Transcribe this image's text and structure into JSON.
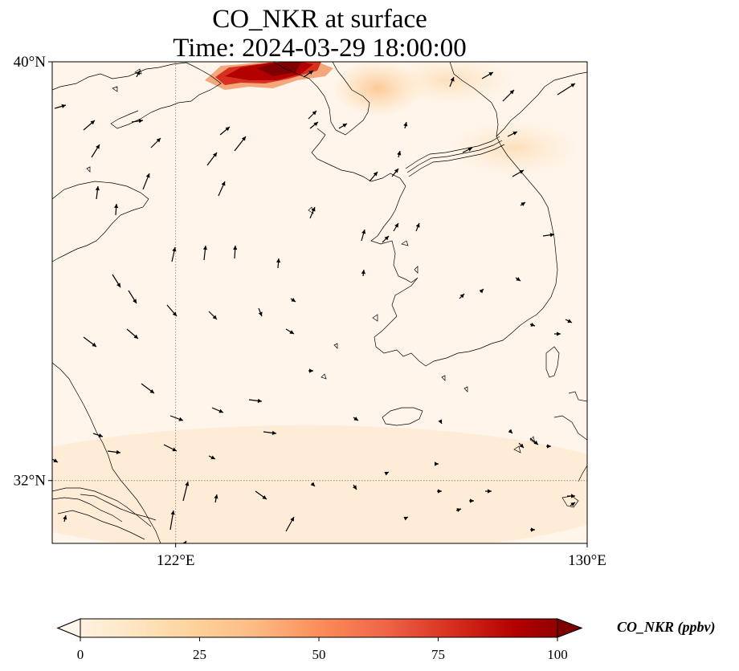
{
  "title": {
    "line1": "CO_NKR at surface",
    "line2": "Time: 2024-03-29 18:00:00"
  },
  "map": {
    "extent": {
      "lon": [
        119.6,
        130.0
      ],
      "lat": [
        30.8,
        40.0
      ]
    },
    "lat_ticks": [
      {
        "value": 40,
        "label": "40°N"
      },
      {
        "value": 32,
        "label": "32°N"
      }
    ],
    "lon_ticks": [
      {
        "value": 122,
        "label": "122°E"
      },
      {
        "value": 130,
        "label": "130°E"
      }
    ],
    "gridlines": "dotted",
    "field_colormap": "OrRd",
    "background_color": "#fff5ea",
    "coastline_color": "#000000",
    "features": [
      "coastline",
      "korean-peninsula",
      "shandong-peninsula",
      "liaodong-peninsula",
      "jeju-island",
      "yangtze-estuary",
      "dmz-border"
    ],
    "wind_vectors": "black arrows"
  },
  "colorbar": {
    "label": "CO_NKR (ppbv)",
    "min": 0,
    "max": 100,
    "ticks": [
      0,
      25,
      50,
      75,
      100
    ],
    "extend": "both",
    "colors": [
      "#fff7ec",
      "#fee8c8",
      "#fdd49e",
      "#fdbb84",
      "#fc8d59",
      "#ef6548",
      "#d7301f",
      "#b30000",
      "#7f0000"
    ]
  }
}
